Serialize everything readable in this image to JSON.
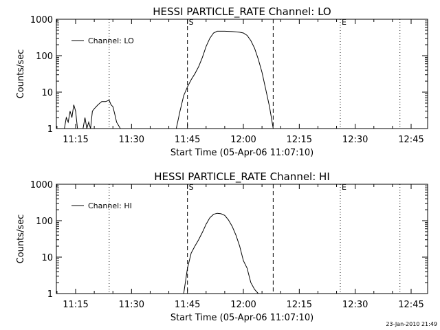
{
  "chart_data": [
    {
      "type": "line",
      "title": "HESSI PARTICLE_RATE Channel: LO",
      "xlabel": "Start Time (05-Apr-06 11:07:10)",
      "ylabel": "Counts/sec",
      "yscale": "log",
      "ylim": [
        1,
        1000
      ],
      "xlim": [
        "11:07",
        "12:48"
      ],
      "x_ticks": [
        "11:15",
        "11:30",
        "11:45",
        "12:00",
        "12:15",
        "12:30",
        "12:45"
      ],
      "y_ticks": [
        "1",
        "10",
        "100",
        "1000"
      ],
      "legend": "Channel: LO",
      "legend_position": "top-left",
      "markers": [
        {
          "label": "",
          "time": "11:24",
          "style": "dotted"
        },
        {
          "label": "S",
          "time": "11:45",
          "style": "dashed"
        },
        {
          "label": "",
          "time": "12:08",
          "style": "dashed"
        },
        {
          "label": "E",
          "time": "12:26",
          "style": "dotted"
        },
        {
          "label": "",
          "time": "12:42",
          "style": "dotted"
        }
      ],
      "series": [
        {
          "name": "Channel: LO",
          "segments": [
            {
              "x": [
                "11:12",
                "11:12.5",
                "11:13",
                "11:13.5",
                "11:14",
                "11:14.5",
                "11:15",
                "11:15.5"
              ],
              "y": [
                1,
                2,
                1.5,
                3,
                2,
                4.5,
                3,
                1
              ]
            },
            {
              "x": [
                "11:17",
                "11:17.5",
                "11:18",
                "11:18.5",
                "11:19",
                "11:19.5",
                "11:20",
                "11:21",
                "11:22",
                "11:23",
                "11:24",
                "11:24.5",
                "11:25",
                "11:25.5",
                "11:26",
                "11:27"
              ],
              "y": [
                1,
                2,
                1,
                1.5,
                1,
                3,
                3.5,
                4.5,
                5.5,
                5.5,
                6,
                4.5,
                4,
                2.5,
                1.5,
                1
              ]
            },
            {
              "x": [
                "11:42",
                "11:43",
                "11:44",
                "11:45",
                "11:46",
                "11:47",
                "11:48",
                "11:49",
                "11:50",
                "11:51",
                "11:52",
                "11:53",
                "11:55",
                "11:57",
                "11:59",
                "12:00",
                "12:01",
                "12:02",
                "12:03",
                "12:04",
                "12:05",
                "12:06",
                "12:07",
                "12:08"
              ],
              "y": [
                1,
                3,
                8,
                14,
                22,
                32,
                50,
                90,
                180,
                300,
                420,
                470,
                470,
                460,
                440,
                420,
                360,
                260,
                160,
                80,
                35,
                12,
                4,
                1
              ]
            }
          ]
        }
      ]
    },
    {
      "type": "line",
      "title": "HESSI PARTICLE_RATE Channel: HI",
      "xlabel": "Start Time (05-Apr-06 11:07:10)",
      "ylabel": "Counts/sec",
      "yscale": "log",
      "ylim": [
        1,
        1000
      ],
      "xlim": [
        "11:07",
        "12:48"
      ],
      "x_ticks": [
        "11:15",
        "11:30",
        "11:45",
        "12:00",
        "12:15",
        "12:30",
        "12:45"
      ],
      "y_ticks": [
        "1",
        "10",
        "100",
        "1000"
      ],
      "legend": "Channel: HI",
      "legend_position": "top-left",
      "markers": [
        {
          "label": "",
          "time": "11:24",
          "style": "dotted"
        },
        {
          "label": "S",
          "time": "11:45",
          "style": "dashed"
        },
        {
          "label": "",
          "time": "12:08",
          "style": "dashed"
        },
        {
          "label": "E",
          "time": "12:26",
          "style": "dotted"
        },
        {
          "label": "",
          "time": "12:42",
          "style": "dotted"
        }
      ],
      "series": [
        {
          "name": "Channel: HI",
          "segments": [
            {
              "x": [
                "11:44",
                "11:45",
                "11:46",
                "11:47",
                "11:48",
                "11:49",
                "11:50",
                "11:51",
                "11:52",
                "11:53",
                "11:54",
                "11:55",
                "11:56",
                "11:57",
                "11:58",
                "11:59",
                "12:00",
                "12:01",
                "12:02",
                "12:03",
                "12:04"
              ],
              "y": [
                1,
                5,
                13,
                20,
                30,
                48,
                80,
                120,
                150,
                160,
                155,
                140,
                105,
                70,
                40,
                20,
                8,
                5,
                2,
                1.3,
                1
              ]
            }
          ]
        }
      ]
    }
  ],
  "footer": {
    "timestamp": "23-Jan-2010 21:49"
  }
}
